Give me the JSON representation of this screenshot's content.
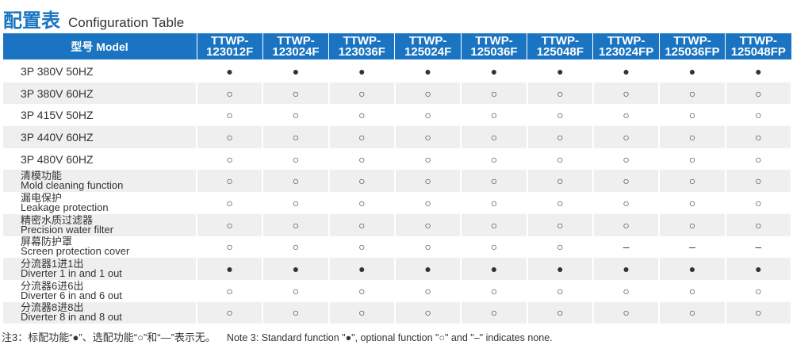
{
  "title": {
    "cn": "配置表",
    "en": "Configuration Table"
  },
  "header": {
    "model_label": "型号 Model",
    "models": [
      [
        "TTWP-",
        "123012F"
      ],
      [
        "TTWP-",
        "123024F"
      ],
      [
        "TTWP-",
        "123036F"
      ],
      [
        "TTWP-",
        "125024F"
      ],
      [
        "TTWP-",
        "125036F"
      ],
      [
        "TTWP-",
        "125048F"
      ],
      [
        "TTWP-",
        "123024FP"
      ],
      [
        "TTWP-",
        "125036FP"
      ],
      [
        "TTWP-",
        "125048FP"
      ]
    ]
  },
  "rows": [
    {
      "cn": "3P 380V 50HZ",
      "en": "",
      "values": [
        "●",
        "●",
        "●",
        "●",
        "●",
        "●",
        "●",
        "●",
        "●"
      ]
    },
    {
      "cn": "3P 380V 60HZ",
      "en": "",
      "values": [
        "○",
        "○",
        "○",
        "○",
        "○",
        "○",
        "○",
        "○",
        "○"
      ]
    },
    {
      "cn": "3P 415V 50HZ",
      "en": "",
      "values": [
        "○",
        "○",
        "○",
        "○",
        "○",
        "○",
        "○",
        "○",
        "○"
      ]
    },
    {
      "cn": "3P 440V 60HZ",
      "en": "",
      "values": [
        "○",
        "○",
        "○",
        "○",
        "○",
        "○",
        "○",
        "○",
        "○"
      ]
    },
    {
      "cn": "3P 480V 60HZ",
      "en": "",
      "values": [
        "○",
        "○",
        "○",
        "○",
        "○",
        "○",
        "○",
        "○",
        "○"
      ]
    },
    {
      "cn": "清模功能",
      "en": "Mold cleaning function",
      "values": [
        "○",
        "○",
        "○",
        "○",
        "○",
        "○",
        "○",
        "○",
        "○"
      ]
    },
    {
      "cn": "漏电保护",
      "en": "Leakage protection",
      "values": [
        "○",
        "○",
        "○",
        "○",
        "○",
        "○",
        "○",
        "○",
        "○"
      ]
    },
    {
      "cn": "精密水质过滤器",
      "en": "Precision water filter",
      "values": [
        "○",
        "○",
        "○",
        "○",
        "○",
        "○",
        "○",
        "○",
        "○"
      ]
    },
    {
      "cn": "屏幕防护罩",
      "en": "Screen protection cover",
      "values": [
        "○",
        "○",
        "○",
        "○",
        "○",
        "○",
        "–",
        "–",
        "–"
      ]
    },
    {
      "cn": "分流器1进1出",
      "en": "Diverter 1 in and 1 out",
      "values": [
        "●",
        "●",
        "●",
        "●",
        "●",
        "●",
        "●",
        "●",
        "●"
      ]
    },
    {
      "cn": "分流器6进6出",
      "en": "Diverter 6 in and 6 out",
      "values": [
        "○",
        "○",
        "○",
        "○",
        "○",
        "○",
        "○",
        "○",
        "○"
      ]
    },
    {
      "cn": "分流器8进8出",
      "en": "Diverter 8 in and 8 out",
      "values": [
        "○",
        "○",
        "○",
        "○",
        "○",
        "○",
        "○",
        "○",
        "○"
      ]
    }
  ],
  "note": {
    "cn": "注3：标配功能“●”、选配功能“○”和“—”表示无。",
    "en": "Note 3: Standard function \"●\", optional function \"○\" and \"–\" indicates none."
  },
  "colors": {
    "header_bg": "#1a74c1",
    "stripe": "#efefef"
  }
}
